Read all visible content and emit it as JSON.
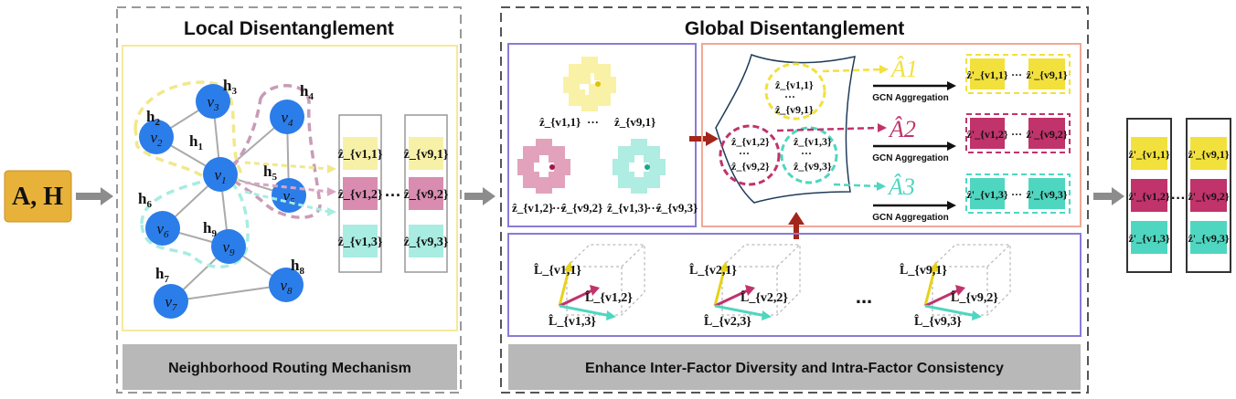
{
  "input_label": "A, H",
  "local": {
    "title": "Local Disentanglement",
    "footer": "Neighborhood Routing Mechanism",
    "nodes": [
      {
        "id": "v3",
        "sub": "3",
        "h": "h",
        "hsub": "3"
      },
      {
        "id": "v2",
        "sub": "2",
        "h": "h",
        "hsub": "2"
      },
      {
        "id": "v4",
        "sub": "4",
        "h": "h",
        "hsub": "4"
      },
      {
        "id": "v1",
        "sub": "1",
        "h": "h",
        "hsub": "1"
      },
      {
        "id": "v5",
        "sub": "5",
        "h": "h",
        "hsub": "5"
      },
      {
        "id": "v6",
        "sub": "6",
        "h": "h",
        "hsub": "6"
      },
      {
        "id": "v9",
        "sub": "9",
        "h": "h",
        "hsub": "9"
      },
      {
        "id": "v7",
        "sub": "7",
        "h": "h",
        "hsub": "7"
      },
      {
        "id": "v8",
        "sub": "8",
        "h": "h",
        "hsub": "8"
      }
    ],
    "vecs_left": [
      "ẑ_{v1,1}",
      "ẑ_{v1,2}",
      "ẑ_{v1,3}"
    ],
    "vecs_right": [
      "ẑ_{v9,1}",
      "ẑ_{v9,2}",
      "ẑ_{v9,3}"
    ],
    "dots": "···"
  },
  "global": {
    "title": "Global Disentanglement",
    "footer": "Enhance Inter-Factor Diversity and Intra-Factor Consistency",
    "clusters": [
      {
        "a": "ẑ_{v1,1}",
        "dots": "···",
        "b": "ẑ_{v9,1}"
      },
      {
        "a": "ẑ_{v1,2}",
        "dots": "···",
        "b": "ẑ_{v9,2}"
      },
      {
        "a": "ẑ_{v1,3}",
        "dots": "···",
        "b": "ẑ_{v9,3}"
      }
    ],
    "manifold_labels": [
      {
        "a": "ẑ_{v1,1}",
        "dots": "···",
        "b": "ẑ_{v9,1}"
      },
      {
        "a": "ẑ_{v1,2}",
        "dots": "···",
        "b": "ẑ_{v9,2}"
      },
      {
        "a": "ẑ_{v1,3}",
        "dots": "···",
        "b": "ẑ_{v9,3}"
      }
    ],
    "adjacency": [
      "Â1",
      "Â2",
      "Â3"
    ],
    "gcn_label": "GCN Aggregation",
    "outputs": [
      {
        "a": "ẑ'_{v1,1}",
        "dots": "···",
        "b": "ẑ'_{v9,1}"
      },
      {
        "a": "ẑ'_{v1,2}",
        "dots": "···",
        "b": "ẑ'_{v9,2}"
      },
      {
        "a": "ẑ'_{v1,3}",
        "dots": "···",
        "b": "ẑ'_{v9,3}"
      }
    ],
    "laplacian_groups": [
      {
        "l1": "L̂_{v1,1}",
        "l2": "L̂_{v1,2}",
        "l3": "L̂_{v1,3}"
      },
      {
        "l1": "L̂_{v2,1}",
        "l2": "L̂_{v2,2}",
        "l3": "L̂_{v2,3}"
      },
      {
        "l1": "L̂_{v9,1}",
        "l2": "L̂_{v9,2}",
        "l3": "L̂_{v9,3}"
      }
    ],
    "dots": "..."
  },
  "final": {
    "left": [
      "ẑ'_{v1,1}",
      "ẑ'_{v1,2}",
      "ẑ'_{v1,3}"
    ],
    "right": [
      "ẑ'_{v9,1}",
      "ẑ'_{v9,2}",
      "ẑ'_{v9,3}"
    ],
    "dots": "···"
  },
  "colors": {
    "yellow": "#f2e13c",
    "magenta": "#c0336b",
    "cyan": "#4fd6c0",
    "pale_yellow": "#f7f1a8",
    "pale_magenta": "#d98cb0",
    "pale_cyan": "#a8ece2",
    "node_blue": "#2b7de9",
    "purple_box": "#8a7ad6",
    "salmon_box": "#f0a99a",
    "dark_red": "#a3261b",
    "gray_arrow": "#8c8c8c"
  }
}
